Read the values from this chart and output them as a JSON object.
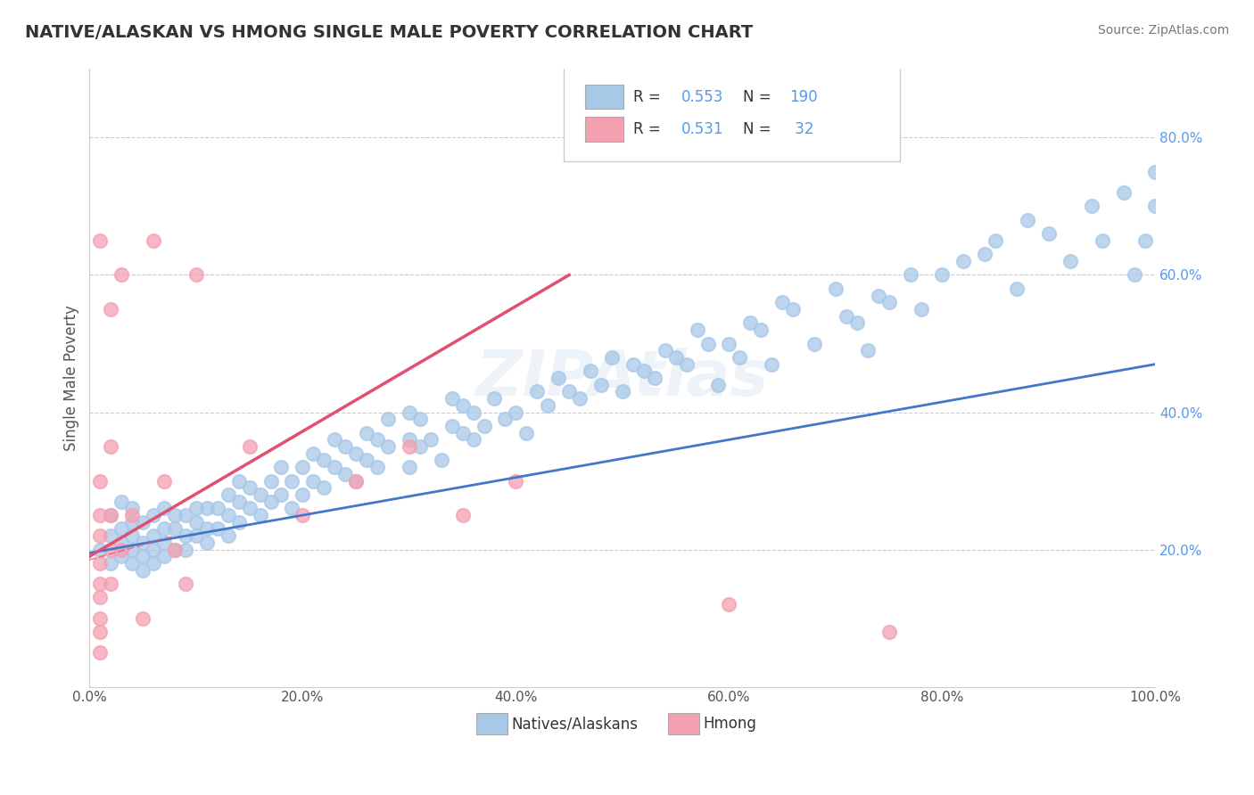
{
  "title": "NATIVE/ALASKAN VS HMONG SINGLE MALE POVERTY CORRELATION CHART",
  "source": "Source: ZipAtlas.com",
  "ylabel": "Single Male Poverty",
  "watermark": "ZIPAtlas",
  "legend_label1": "Natives/Alaskans",
  "legend_label2": "Hmong",
  "r1": 0.553,
  "n1": 190,
  "r2": 0.531,
  "n2": 32,
  "blue_color": "#a8c8e8",
  "pink_color": "#f4a0b0",
  "blue_line_color": "#4477cc",
  "pink_line_color": "#e05070",
  "title_color": "#333333",
  "axis_label_color": "#555555",
  "right_axis_color": "#5599ee",
  "xlim": [
    0.0,
    1.0
  ],
  "ylim": [
    0.0,
    0.9
  ],
  "blue_scatter_x": [
    0.01,
    0.02,
    0.02,
    0.02,
    0.03,
    0.03,
    0.03,
    0.03,
    0.04,
    0.04,
    0.04,
    0.04,
    0.04,
    0.05,
    0.05,
    0.05,
    0.05,
    0.06,
    0.06,
    0.06,
    0.06,
    0.07,
    0.07,
    0.07,
    0.07,
    0.08,
    0.08,
    0.08,
    0.09,
    0.09,
    0.09,
    0.1,
    0.1,
    0.1,
    0.11,
    0.11,
    0.11,
    0.12,
    0.12,
    0.13,
    0.13,
    0.13,
    0.14,
    0.14,
    0.14,
    0.15,
    0.15,
    0.16,
    0.16,
    0.17,
    0.17,
    0.18,
    0.18,
    0.19,
    0.19,
    0.2,
    0.2,
    0.21,
    0.21,
    0.22,
    0.22,
    0.23,
    0.23,
    0.24,
    0.24,
    0.25,
    0.25,
    0.26,
    0.26,
    0.27,
    0.27,
    0.28,
    0.28,
    0.3,
    0.3,
    0.3,
    0.31,
    0.31,
    0.32,
    0.33,
    0.34,
    0.34,
    0.35,
    0.35,
    0.36,
    0.36,
    0.37,
    0.38,
    0.39,
    0.4,
    0.41,
    0.42,
    0.43,
    0.44,
    0.45,
    0.46,
    0.47,
    0.48,
    0.49,
    0.5,
    0.51,
    0.52,
    0.53,
    0.54,
    0.55,
    0.56,
    0.57,
    0.58,
    0.59,
    0.6,
    0.61,
    0.62,
    0.63,
    0.64,
    0.65,
    0.66,
    0.68,
    0.7,
    0.71,
    0.72,
    0.73,
    0.74,
    0.75,
    0.77,
    0.78,
    0.8,
    0.82,
    0.84,
    0.85,
    0.87,
    0.88,
    0.9,
    0.92,
    0.94,
    0.95,
    0.97,
    0.98,
    0.99,
    1.0,
    1.0
  ],
  "blue_scatter_y": [
    0.2,
    0.18,
    0.22,
    0.25,
    0.19,
    0.21,
    0.23,
    0.27,
    0.18,
    0.2,
    0.22,
    0.24,
    0.26,
    0.17,
    0.19,
    0.21,
    0.24,
    0.18,
    0.2,
    0.22,
    0.25,
    0.19,
    0.21,
    0.23,
    0.26,
    0.2,
    0.23,
    0.25,
    0.2,
    0.22,
    0.25,
    0.22,
    0.24,
    0.26,
    0.21,
    0.23,
    0.26,
    0.23,
    0.26,
    0.22,
    0.25,
    0.28,
    0.24,
    0.27,
    0.3,
    0.26,
    0.29,
    0.25,
    0.28,
    0.27,
    0.3,
    0.28,
    0.32,
    0.26,
    0.3,
    0.28,
    0.32,
    0.3,
    0.34,
    0.29,
    0.33,
    0.32,
    0.36,
    0.31,
    0.35,
    0.3,
    0.34,
    0.33,
    0.37,
    0.32,
    0.36,
    0.35,
    0.39,
    0.32,
    0.36,
    0.4,
    0.35,
    0.39,
    0.36,
    0.33,
    0.38,
    0.42,
    0.37,
    0.41,
    0.36,
    0.4,
    0.38,
    0.42,
    0.39,
    0.4,
    0.37,
    0.43,
    0.41,
    0.45,
    0.43,
    0.42,
    0.46,
    0.44,
    0.48,
    0.43,
    0.47,
    0.46,
    0.45,
    0.49,
    0.48,
    0.47,
    0.52,
    0.5,
    0.44,
    0.5,
    0.48,
    0.53,
    0.52,
    0.47,
    0.56,
    0.55,
    0.5,
    0.58,
    0.54,
    0.53,
    0.49,
    0.57,
    0.56,
    0.6,
    0.55,
    0.6,
    0.62,
    0.63,
    0.65,
    0.58,
    0.68,
    0.66,
    0.62,
    0.7,
    0.65,
    0.72,
    0.6,
    0.65,
    0.7,
    0.75
  ],
  "pink_scatter_x": [
    0.01,
    0.01,
    0.01,
    0.01,
    0.01,
    0.01,
    0.01,
    0.01,
    0.01,
    0.01,
    0.02,
    0.02,
    0.02,
    0.02,
    0.02,
    0.03,
    0.03,
    0.04,
    0.05,
    0.06,
    0.07,
    0.08,
    0.09,
    0.1,
    0.15,
    0.2,
    0.25,
    0.3,
    0.35,
    0.4,
    0.6,
    0.75
  ],
  "pink_scatter_y": [
    0.05,
    0.08,
    0.1,
    0.13,
    0.15,
    0.18,
    0.22,
    0.25,
    0.3,
    0.65,
    0.15,
    0.2,
    0.25,
    0.35,
    0.55,
    0.2,
    0.6,
    0.25,
    0.1,
    0.65,
    0.3,
    0.2,
    0.15,
    0.6,
    0.35,
    0.25,
    0.3,
    0.35,
    0.25,
    0.3,
    0.12,
    0.08
  ],
  "blue_line_x": [
    0.0,
    1.0
  ],
  "blue_line_y": [
    0.195,
    0.47
  ],
  "pink_line_x": [
    0.0,
    0.45
  ],
  "pink_line_y": [
    0.19,
    0.6
  ],
  "xtick_labels": [
    "0.0%",
    "20.0%",
    "40.0%",
    "60.0%",
    "80.0%",
    "100.0%"
  ],
  "xtick_vals": [
    0.0,
    0.2,
    0.4,
    0.6,
    0.8,
    1.0
  ],
  "ytick_vals": [
    0.2,
    0.4,
    0.6,
    0.8
  ],
  "ytick_labels": [
    "20.0%",
    "40.0%",
    "60.0%",
    "80.0%"
  ]
}
